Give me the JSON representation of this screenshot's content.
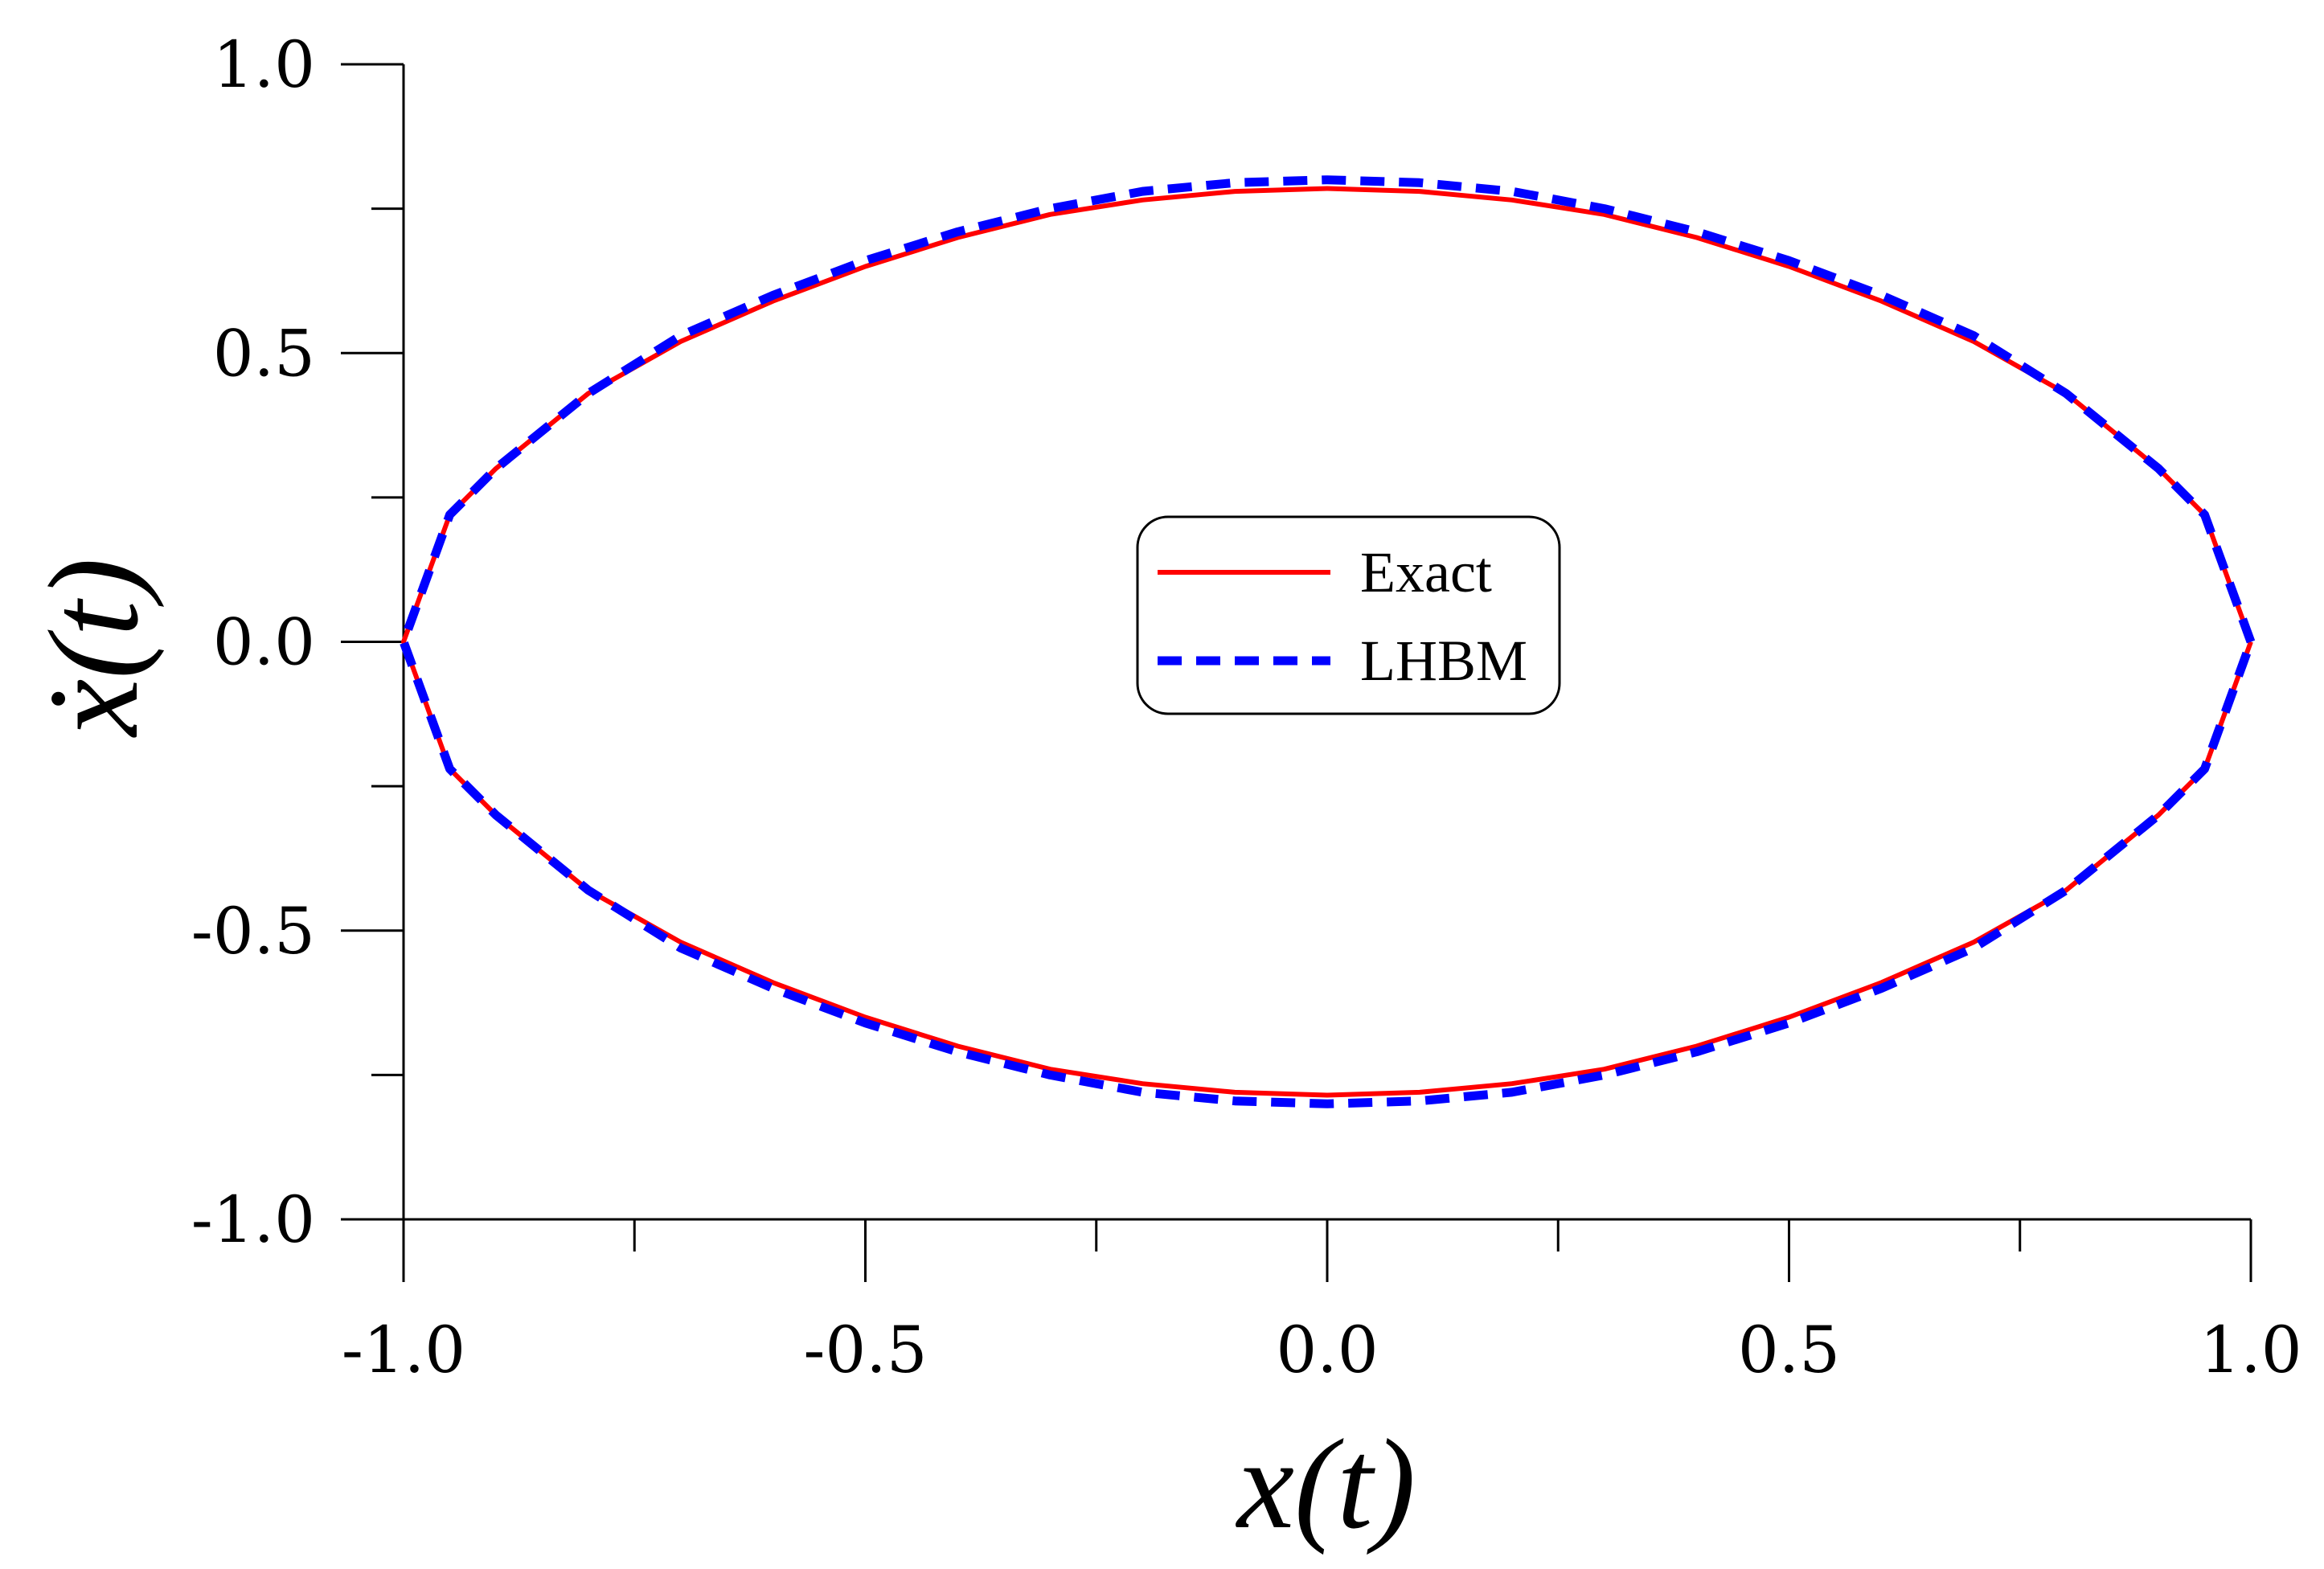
{
  "chart_data": {
    "type": "line",
    "xlabel": "x(t)",
    "ylabel": "ẋ(t)",
    "xlim": [
      -1.0,
      1.0
    ],
    "ylim": [
      -1.0,
      1.0
    ],
    "x_ticks": [
      "-1.0",
      "-0.5",
      "0.0",
      "0.5",
      "1.0"
    ],
    "y_ticks": [
      "-1.0",
      "-0.5",
      "0.0",
      "0.5",
      "1.0"
    ],
    "x_tick_values": [
      -1.0,
      -0.5,
      0.0,
      0.5,
      1.0
    ],
    "y_tick_values": [
      -1.0,
      -0.5,
      0.0,
      0.5,
      1.0
    ],
    "x_minor_tick_values": [
      -0.75,
      -0.25,
      0.25,
      0.75
    ],
    "y_minor_tick_values": [
      -0.75,
      -0.25,
      0.25,
      0.75
    ],
    "grid": false,
    "legend_position": "center",
    "series": [
      {
        "name": "Exact",
        "color": "#ff0000",
        "style": "solid",
        "x": [
          1.0,
          0.95,
          0.9,
          0.8,
          0.7,
          0.6,
          0.5,
          0.4,
          0.3,
          0.2,
          0.1,
          0.0,
          -0.1,
          -0.2,
          -0.3,
          -0.4,
          -0.5,
          -0.6,
          -0.7,
          -0.8,
          -0.9,
          -0.95,
          -1.0,
          -0.95,
          -0.9,
          -0.8,
          -0.7,
          -0.6,
          -0.5,
          -0.4,
          -0.3,
          -0.2,
          -0.1,
          0.0,
          0.1,
          0.2,
          0.3,
          0.4,
          0.5,
          0.6,
          0.7,
          0.8,
          0.9,
          0.95,
          1.0
        ],
        "y": [
          0.0,
          0.22,
          0.3,
          0.43,
          0.52,
          0.59,
          0.65,
          0.7,
          0.74,
          0.765,
          0.78,
          0.785,
          0.78,
          0.765,
          0.74,
          0.7,
          0.65,
          0.59,
          0.52,
          0.43,
          0.3,
          0.22,
          0.0,
          -0.22,
          -0.3,
          -0.43,
          -0.52,
          -0.59,
          -0.65,
          -0.7,
          -0.74,
          -0.765,
          -0.78,
          -0.785,
          -0.78,
          -0.765,
          -0.74,
          -0.7,
          -0.65,
          -0.59,
          -0.52,
          -0.43,
          -0.3,
          -0.22,
          0.0
        ]
      },
      {
        "name": "LHBM",
        "color": "#0000ff",
        "style": "dashed",
        "x": [
          1.0,
          0.95,
          0.9,
          0.8,
          0.7,
          0.6,
          0.5,
          0.4,
          0.3,
          0.2,
          0.1,
          0.0,
          -0.1,
          -0.2,
          -0.3,
          -0.4,
          -0.5,
          -0.6,
          -0.7,
          -0.8,
          -0.9,
          -0.95,
          -1.0,
          -0.95,
          -0.9,
          -0.8,
          -0.7,
          -0.6,
          -0.5,
          -0.4,
          -0.3,
          -0.2,
          -0.1,
          0.0,
          0.1,
          0.2,
          0.3,
          0.4,
          0.5,
          0.6,
          0.7,
          0.8,
          0.9,
          0.95,
          1.0
        ],
        "y": [
          0.0,
          0.22,
          0.3,
          0.43,
          0.53,
          0.6,
          0.66,
          0.71,
          0.75,
          0.78,
          0.795,
          0.8,
          0.795,
          0.78,
          0.75,
          0.71,
          0.66,
          0.6,
          0.53,
          0.43,
          0.3,
          0.22,
          0.0,
          -0.22,
          -0.3,
          -0.43,
          -0.53,
          -0.6,
          -0.66,
          -0.71,
          -0.75,
          -0.78,
          -0.795,
          -0.8,
          -0.795,
          -0.78,
          -0.75,
          -0.71,
          -0.66,
          -0.6,
          -0.53,
          -0.43,
          -0.3,
          -0.22,
          0.0
        ]
      }
    ]
  }
}
